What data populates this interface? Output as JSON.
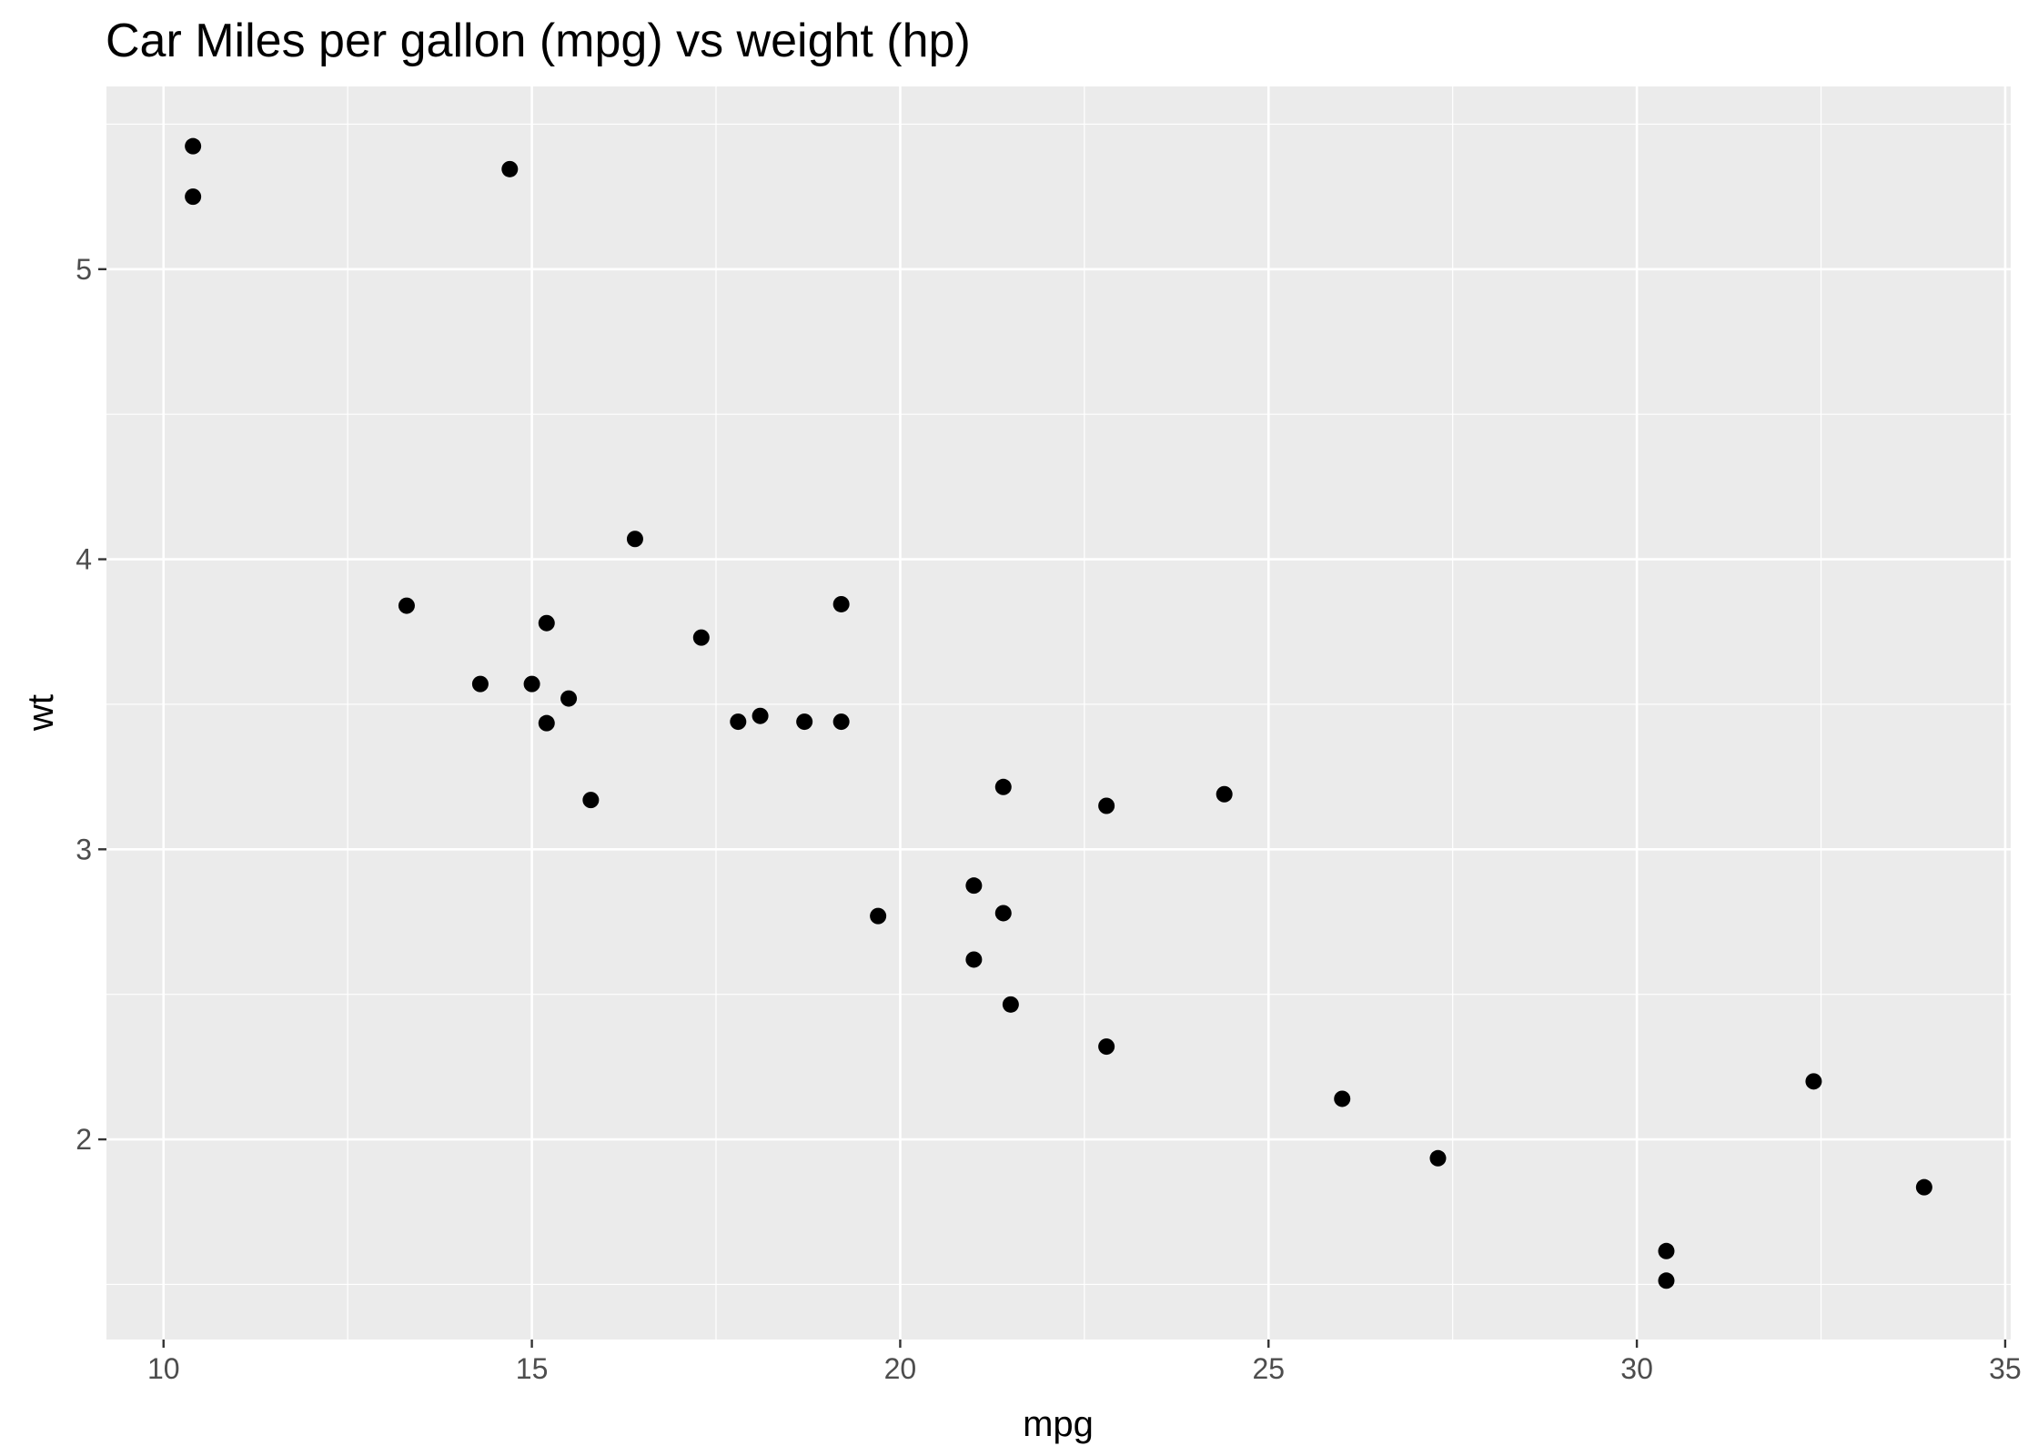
{
  "chart_data": {
    "type": "scatter",
    "title": "Car Miles per gallon (mpg) vs weight (hp)",
    "xlabel": "mpg",
    "ylabel": "wt",
    "xlim": [
      9.225,
      35.075
    ],
    "ylim": [
      1.31,
      5.63
    ],
    "x_ticks": [
      10,
      15,
      20,
      25,
      30,
      35
    ],
    "y_ticks": [
      2,
      3,
      4,
      5
    ],
    "grid": true,
    "legend": "none",
    "colors": {
      "panel_background": "#ebebeb",
      "grid": "#ffffff",
      "points": "#000000",
      "tick_text": "#4d4d4d"
    },
    "points": [
      {
        "x": 10.4,
        "y": 5.424
      },
      {
        "x": 10.4,
        "y": 5.25
      },
      {
        "x": 14.7,
        "y": 5.345
      },
      {
        "x": 16.4,
        "y": 4.07
      },
      {
        "x": 13.3,
        "y": 3.84
      },
      {
        "x": 19.2,
        "y": 3.845
      },
      {
        "x": 15.2,
        "y": 3.78
      },
      {
        "x": 17.3,
        "y": 3.73
      },
      {
        "x": 14.3,
        "y": 3.57
      },
      {
        "x": 15.0,
        "y": 3.57
      },
      {
        "x": 15.5,
        "y": 3.52
      },
      {
        "x": 18.1,
        "y": 3.46
      },
      {
        "x": 17.8,
        "y": 3.44
      },
      {
        "x": 18.7,
        "y": 3.44
      },
      {
        "x": 19.2,
        "y": 3.44
      },
      {
        "x": 15.2,
        "y": 3.435
      },
      {
        "x": 21.4,
        "y": 3.215
      },
      {
        "x": 24.4,
        "y": 3.19
      },
      {
        "x": 15.8,
        "y": 3.17
      },
      {
        "x": 22.8,
        "y": 3.15
      },
      {
        "x": 21.0,
        "y": 2.875
      },
      {
        "x": 21.4,
        "y": 2.78
      },
      {
        "x": 19.7,
        "y": 2.77
      },
      {
        "x": 21.0,
        "y": 2.62
      },
      {
        "x": 21.5,
        "y": 2.465
      },
      {
        "x": 22.8,
        "y": 2.32
      },
      {
        "x": 32.4,
        "y": 2.2
      },
      {
        "x": 26.0,
        "y": 2.14
      },
      {
        "x": 27.3,
        "y": 1.935
      },
      {
        "x": 33.9,
        "y": 1.835
      },
      {
        "x": 30.4,
        "y": 1.615
      },
      {
        "x": 30.4,
        "y": 1.513
      }
    ]
  }
}
